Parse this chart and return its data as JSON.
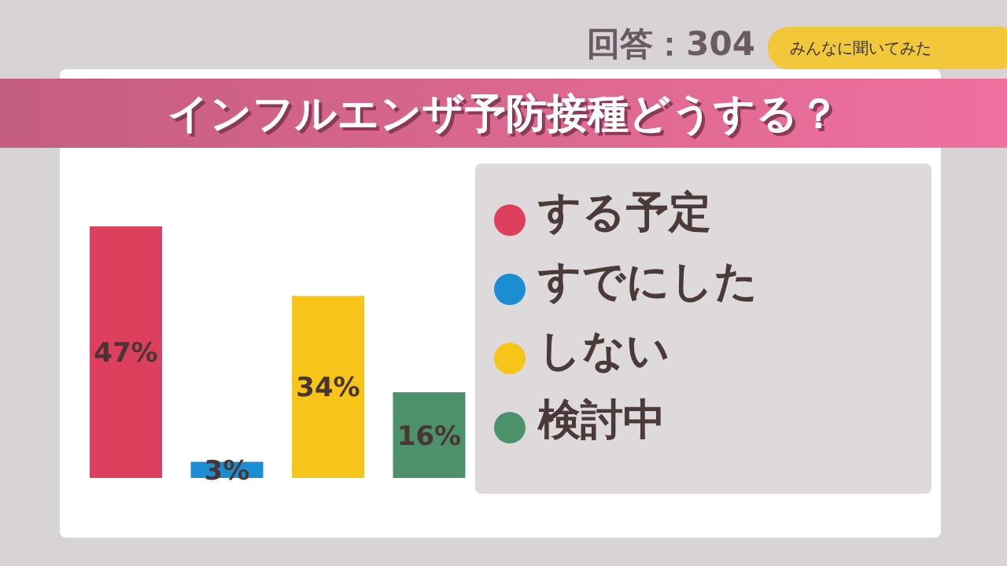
{
  "chart_data": {
    "type": "bar",
    "title": "インフルエンザ予防接種どうする？",
    "annotations": [
      "回答：304",
      "みんなに聞いてみた"
    ],
    "categories": [
      null,
      null,
      null,
      null
    ],
    "stacked": true,
    "series": [
      {
        "name": "する予定",
        "color": "#dc405c",
        "values": [
          47,
          null,
          null,
          null
        ],
        "value_labels": [
          "47%",
          null,
          null,
          null
        ]
      },
      {
        "name": "すでにした",
        "color": "#1a8ed0",
        "values": [
          null,
          3,
          null,
          null
        ],
        "value_labels": [
          null,
          "3%",
          null,
          null
        ]
      },
      {
        "name": "しない",
        "color": "#f7c517",
        "values": [
          null,
          null,
          34,
          null
        ],
        "value_labels": [
          null,
          null,
          "34%",
          null
        ]
      },
      {
        "name": "検討中",
        "color": "#4b926a",
        "values": [
          null,
          null,
          null,
          16
        ],
        "value_labels": [
          null,
          null,
          null,
          "16%"
        ]
      }
    ],
    "legend": "right",
    "tick_labels": false
  }
}
